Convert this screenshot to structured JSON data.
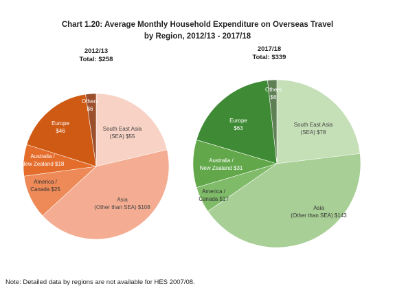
{
  "title_line1": "Chart 1.20: Average Monthly Household Expenditure on Overseas Travel",
  "title_line2": "by Region, 2012/13 - 2017/18",
  "note": "Note: Detailed data by regions are not available for HES 2007/08.",
  "chart_data": [
    {
      "type": "pie",
      "period": "2012/13",
      "total": "Total: $258",
      "slices": [
        {
          "label_lines": [
            "South East Asia",
            "(SEA) $55"
          ],
          "value": 55,
          "color": "#f8d2c4",
          "text_color": "#444444"
        },
        {
          "label_lines": [
            "Asia",
            "(Other than SEA) $108"
          ],
          "value": 108,
          "color": "#f4ad92",
          "text_color": "#444444"
        },
        {
          "label_lines": [
            "America /",
            "Canada $25"
          ],
          "value": 25,
          "color": "#ee8a58",
          "text_color": "#333333"
        },
        {
          "label_lines": [
            "Australia /",
            "New Zealand $18"
          ],
          "value": 18,
          "color": "#e56d2b",
          "text_color": "#ffffff"
        },
        {
          "label_lines": [
            "Europe",
            "$46"
          ],
          "value": 46,
          "color": "#cf5a14",
          "text_color": "#ffffff"
        },
        {
          "label_lines": [
            "Others",
            "$6"
          ],
          "value": 6,
          "color": "#9b4f2c",
          "text_color": "#ffffff"
        }
      ]
    },
    {
      "type": "pie",
      "period": "2017/18",
      "total": "Total: $339",
      "slices": [
        {
          "label_lines": [
            "South East Asia",
            "(SEA) $78"
          ],
          "value": 78,
          "color": "#c5dfb7",
          "text_color": "#444444"
        },
        {
          "label_lines": [
            "Asia",
            "(Other than SEA) $143"
          ],
          "value": 143,
          "color": "#a8cf96",
          "text_color": "#333333"
        },
        {
          "label_lines": [
            "America /",
            "Canada $17"
          ],
          "value": 17,
          "color": "#7fbb68",
          "text_color": "#333333"
        },
        {
          "label_lines": [
            "Australia /",
            "New Zealand $31"
          ],
          "value": 31,
          "color": "#62a84b",
          "text_color": "#ffffff"
        },
        {
          "label_lines": [
            "Europe",
            "$63"
          ],
          "value": 63,
          "color": "#3f8a35",
          "text_color": "#ffffff"
        },
        {
          "label_lines": [
            "Others",
            "$6"
          ],
          "value": 6,
          "color": "#5f7f55",
          "text_color": "#ffffff"
        }
      ]
    }
  ]
}
